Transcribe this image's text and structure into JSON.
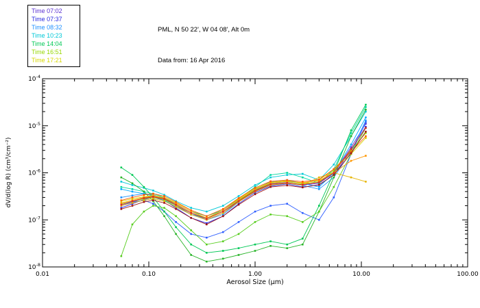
{
  "header": {
    "title_line1": "PML, N 50 22', W 04 08', Alt 0m",
    "title_line2": "Data from: 16 Apr 2016"
  },
  "legend": {
    "items": [
      {
        "label": "Time 07:02",
        "color": "#5a2fd1"
      },
      {
        "label": "Time 07:37",
        "color": "#2a2ae0"
      },
      {
        "label": "Time 08:32",
        "color": "#1e90ff"
      },
      {
        "label": "Time 10:23",
        "color": "#00c8d7"
      },
      {
        "label": "Time 14:04",
        "color": "#00c855"
      },
      {
        "label": "Time 16:51",
        "color": "#96d700"
      },
      {
        "label": "Time 17:21",
        "color": "#d7d700"
      }
    ]
  },
  "chart_data": {
    "type": "line",
    "title": "PML, N 50 22', W 04 08', Alt 0m — Data from: 16 Apr 2016",
    "xlabel": "Aerosol Size (μm)",
    "ylabel": "dV/d(log R) (cm³/cm⁻²)",
    "x_scale": "log",
    "y_scale": "log",
    "xlim": [
      0.01,
      100
    ],
    "ylim": [
      1e-08,
      0.0001
    ],
    "grid": false,
    "legend_position": "top-left",
    "x_ticks": [
      {
        "v": 0.01,
        "label": "0.01"
      },
      {
        "v": 0.1,
        "label": "0.10"
      },
      {
        "v": 1.0,
        "label": "1.00"
      },
      {
        "v": 10.0,
        "label": "10.00"
      },
      {
        "v": 100.0,
        "label": "100.00"
      }
    ],
    "y_ticks": [
      {
        "v": 1e-08,
        "label": "10^-8",
        "exp": "-8"
      },
      {
        "v": 1e-07,
        "label": "10^-7",
        "exp": "-7"
      },
      {
        "v": 1e-06,
        "label": "10^-6",
        "exp": "-6"
      },
      {
        "v": 1e-05,
        "label": "10^-5",
        "exp": "-5"
      },
      {
        "v": 0.0001,
        "label": "10^-4",
        "exp": "-4"
      }
    ],
    "x": [
      0.055,
      0.07,
      0.09,
      0.11,
      0.14,
      0.18,
      0.25,
      0.35,
      0.5,
      0.7,
      1.0,
      1.4,
      2.0,
      2.8,
      4.0,
      5.5,
      8.0,
      11.0
    ],
    "series": [
      {
        "name": "Time 07:02",
        "color": "#5a2fd1",
        "values": [
          2e-07,
          2.4e-07,
          2.9e-07,
          3.2e-07,
          2.8e-07,
          2e-07,
          1.3e-07,
          1e-07,
          1.4e-07,
          2.5e-07,
          4.2e-07,
          5.8e-07,
          6.2e-07,
          5.5e-07,
          6e-07,
          1e-06,
          3.5e-06,
          1.1e-05
        ]
      },
      {
        "name": "Time 07:37",
        "color": "#2a2ae0",
        "values": [
          1.8e-07,
          2.2e-07,
          2.7e-07,
          3e-07,
          2.6e-07,
          1.8e-07,
          1.1e-07,
          8.5e-08,
          1.2e-07,
          2.2e-07,
          3.8e-07,
          5.2e-07,
          5.8e-07,
          5e-07,
          5.5e-07,
          9e-07,
          3e-06,
          9.5e-06
        ]
      },
      {
        "name": "",
        "color": "#2f5fff",
        "values": [
          2e-07,
          2.4e-07,
          2.6e-07,
          2.2e-07,
          1.5e-07,
          9e-08,
          5e-08,
          4.2e-08,
          5.5e-08,
          9e-08,
          1.5e-07,
          2e-07,
          2.2e-07,
          1.4e-07,
          1e-07,
          3e-07,
          2.5e-06,
          1.2e-05
        ]
      },
      {
        "name": "Time 08:32",
        "color": "#1e90ff",
        "values": [
          3e-07,
          3.3e-07,
          3.6e-07,
          3.4e-07,
          2.9e-07,
          2.1e-07,
          1.4e-07,
          1e-07,
          1.3e-07,
          2.4e-07,
          4e-07,
          5.5e-07,
          6e-07,
          5.4e-07,
          4.5e-07,
          8e-07,
          2.8e-06,
          1.3e-05
        ]
      },
      {
        "name": "",
        "color": "#00a8ff",
        "values": [
          4.5e-07,
          4e-07,
          3.6e-07,
          3.2e-07,
          2.6e-07,
          1.9e-07,
          1.3e-07,
          1.1e-07,
          1.5e-07,
          2.6e-07,
          4.5e-07,
          6.5e-07,
          7e-07,
          6e-07,
          5e-07,
          1e-06,
          4e-06,
          1.5e-05
        ]
      },
      {
        "name": "Time 10:23",
        "color": "#00c8d7",
        "values": [
          6.5e-07,
          5.5e-07,
          4.8e-07,
          4.2e-07,
          3.4e-07,
          2.5e-07,
          1.8e-07,
          1.5e-07,
          2e-07,
          3.2e-07,
          5.5e-07,
          8e-07,
          9e-07,
          9.5e-07,
          7e-07,
          1.5e-06,
          6e-06,
          2e-05
        ]
      },
      {
        "name": "",
        "color": "#00d7a0",
        "values": [
          5e-07,
          4.5e-07,
          4e-07,
          3.6e-07,
          3e-07,
          2.2e-07,
          1.5e-07,
          1.2e-07,
          1.6e-07,
          2.8e-07,
          5e-07,
          9e-07,
          1e-06,
          8e-07,
          6e-07,
          1.2e-06,
          7e-06,
          2.5e-05
        ]
      },
      {
        "name": "Time 14:04",
        "color": "#00c855",
        "values": [
          1.3e-06,
          9e-07,
          5e-07,
          3e-07,
          1.5e-07,
          7e-08,
          3e-08,
          2e-08,
          2.2e-08,
          2.5e-08,
          3e-08,
          3.5e-08,
          3e-08,
          4e-08,
          2e-07,
          1e-06,
          8e-06,
          2.8e-05
        ]
      },
      {
        "name": "",
        "color": "#28b428",
        "values": [
          8e-07,
          6e-07,
          4e-07,
          2.5e-07,
          1.2e-07,
          5e-08,
          1.8e-08,
          1.3e-08,
          1.5e-08,
          1.8e-08,
          2.2e-08,
          2.8e-08,
          2.5e-08,
          3e-08,
          1.5e-07,
          8e-07,
          6e-06,
          2.2e-05
        ]
      },
      {
        "name": "",
        "color": "#57cd1e",
        "values": [
          1.7e-08,
          8e-08,
          1.5e-07,
          2e-07,
          1.8e-07,
          1.2e-07,
          6e-08,
          3e-08,
          3.5e-08,
          5e-08,
          9e-08,
          1.3e-07,
          1.2e-07,
          9e-08,
          1.5e-07,
          5e-07,
          2.5e-06,
          9e-06
        ]
      },
      {
        "name": "Time 16:51",
        "color": "#96d700",
        "values": [
          2.2e-07,
          2.5e-07,
          2.8e-07,
          3e-07,
          2.7e-07,
          2e-07,
          1.4e-07,
          1.1e-07,
          1.5e-07,
          2.6e-07,
          4.3e-07,
          6e-07,
          6.5e-07,
          5.8e-07,
          6.5e-07,
          1.1e-06,
          3e-06,
          7e-06
        ]
      },
      {
        "name": "Time 17:21",
        "color": "#d7d700",
        "values": [
          2.5e-07,
          2.8e-07,
          3.1e-07,
          3.3e-07,
          3e-07,
          2.3e-07,
          1.6e-07,
          1.2e-07,
          1.7e-07,
          2.8e-07,
          4.6e-07,
          6.3e-07,
          6.8e-07,
          6e-07,
          7e-07,
          1.2e-06,
          2.5e-06,
          5.5e-06
        ]
      },
      {
        "name": "",
        "color": "#e6b400",
        "values": [
          2e-07,
          2.3e-07,
          2.6e-07,
          2.8e-07,
          2.5e-07,
          1.9e-07,
          1.3e-07,
          1e-07,
          1.4e-07,
          2.4e-07,
          4e-07,
          5.5e-07,
          6e-07,
          5.5e-07,
          8e-07,
          1e-06,
          8e-07,
          6.5e-07
        ]
      },
      {
        "name": "",
        "color": "#ff9600",
        "values": [
          2.3e-07,
          2.6e-07,
          3e-07,
          3.2e-07,
          2.9e-07,
          2.2e-07,
          1.5e-07,
          1.1e-07,
          1.6e-07,
          2.7e-07,
          4.4e-07,
          6.1e-07,
          6.6e-07,
          6.2e-07,
          6.8e-07,
          1e-06,
          1.8e-06,
          2.3e-06
        ]
      },
      {
        "name": "",
        "color": "#ff5a00",
        "values": [
          2.6e-07,
          3e-07,
          3.4e-07,
          3.6e-07,
          3.2e-07,
          2.4e-07,
          1.6e-07,
          1.2e-07,
          1.7e-07,
          2.9e-07,
          4.8e-07,
          6.6e-07,
          7e-07,
          6.5e-07,
          7.2e-07,
          1.2e-06,
          2.8e-06,
          6e-06
        ]
      },
      {
        "name": "",
        "color": "#dc2828",
        "values": [
          2.1e-07,
          2.5e-07,
          2.9e-07,
          3.1e-07,
          2.8e-07,
          2.1e-07,
          1.4e-07,
          1.05e-07,
          1.5e-07,
          2.5e-07,
          4.1e-07,
          5.7e-07,
          6.1e-07,
          5.6e-07,
          6.3e-07,
          1e-06,
          3.2e-06,
          9e-06
        ]
      },
      {
        "name": "",
        "color": "#a01414",
        "values": [
          1.7e-07,
          2e-07,
          2.4e-07,
          2.6e-07,
          2.3e-07,
          1.7e-07,
          1.1e-07,
          8e-08,
          1.2e-07,
          2.1e-07,
          3.5e-07,
          5e-07,
          5.4e-07,
          4.9e-07,
          5.6e-07,
          9e-07,
          2.6e-06,
          7.5e-06
        ]
      }
    ]
  }
}
